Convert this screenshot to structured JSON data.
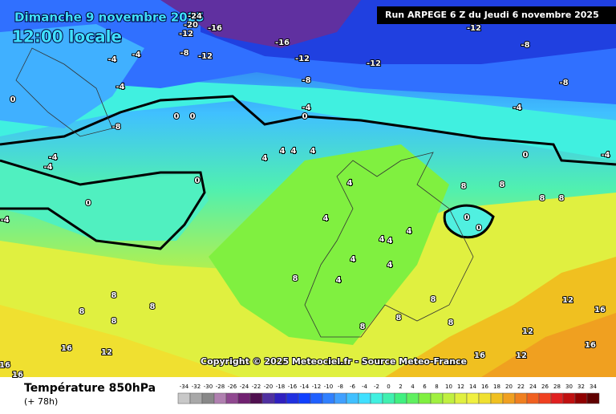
{
  "header": {
    "date": "Dimanche 9 novembre 2025",
    "time": "12:00 locale",
    "run": "Run ARPEGE 6 Z du Jeudi 6 novembre 2025"
  },
  "copyright": "Copyright © 2025 Meteociel.fr - Source Meteo-France",
  "footer": {
    "title": "Température 850hPa",
    "subtitle": "(+ 78h)"
  },
  "scale": {
    "values": [
      -34,
      -32,
      -30,
      -28,
      -26,
      -24,
      -22,
      -20,
      -18,
      -16,
      -14,
      -12,
      -10,
      -8,
      -6,
      -4,
      -2,
      0,
      2,
      4,
      6,
      8,
      10,
      12,
      14,
      16,
      18,
      20,
      22,
      24,
      26,
      28,
      30,
      32,
      34
    ],
    "colors": [
      "#c8c8c8",
      "#a8a8a8",
      "#888888",
      "#b080b0",
      "#904890",
      "#702070",
      "#501050",
      "#5030a0",
      "#3020c0",
      "#2030e0",
      "#1040ff",
      "#2060ff",
      "#3080ff",
      "#40a0ff",
      "#40c0ff",
      "#40e0ff",
      "#40f0e0",
      "#40f0b0",
      "#40f080",
      "#60f060",
      "#80f040",
      "#a0f040",
      "#c0f040",
      "#e0f040",
      "#f0f040",
      "#f0e030",
      "#f0c020",
      "#f0a020",
      "#f08020",
      "#f06020",
      "#f04020",
      "#e02020",
      "#c01010",
      "#900000",
      "#600000"
    ]
  },
  "map_labels": [
    -24,
    -20,
    -16,
    -12,
    -16,
    -12,
    -12,
    -12,
    -8,
    -8,
    -8,
    -4,
    -4,
    0,
    0,
    -4,
    -8,
    -12,
    -4,
    -4,
    -4,
    -8,
    0,
    0,
    0,
    0,
    0,
    -4,
    -4,
    -4,
    4,
    4,
    4,
    4,
    4,
    4,
    4,
    4,
    4,
    4,
    4,
    4,
    8,
    8,
    8,
    8,
    0,
    0,
    8,
    8,
    8,
    8,
    8,
    16,
    12,
    16,
    16,
    12,
    16,
    12,
    16,
    12,
    16,
    8,
    8,
    8,
    8
  ]
}
